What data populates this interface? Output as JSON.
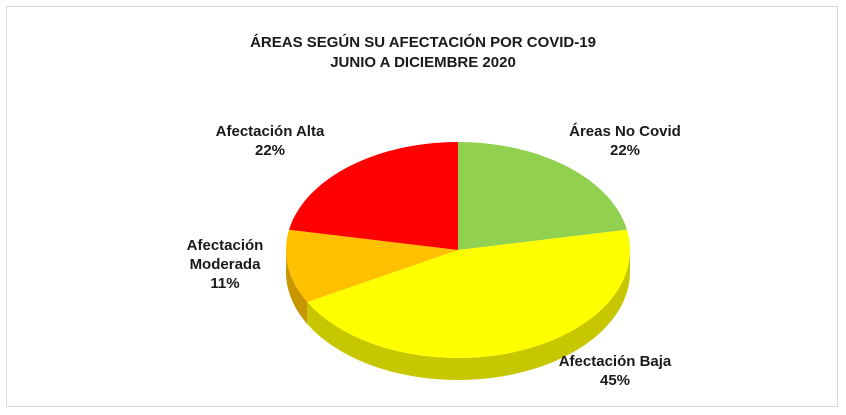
{
  "chart_data": {
    "type": "pie",
    "title": "ÁREAS SEGÚN SU AFECTACIÓN POR COVID-19",
    "subtitle": "JUNIO A DICIEMBRE 2020",
    "categories": [
      "Áreas No Covid",
      "Afectación Baja",
      "Afectación Moderada",
      "Afectación Alta"
    ],
    "values": [
      22,
      45,
      11,
      22
    ],
    "value_labels": [
      "22%",
      "45%",
      "11%",
      "22%"
    ],
    "colors": [
      "#92d050",
      "#ffff00",
      "#ffc000",
      "#ff0000"
    ]
  }
}
